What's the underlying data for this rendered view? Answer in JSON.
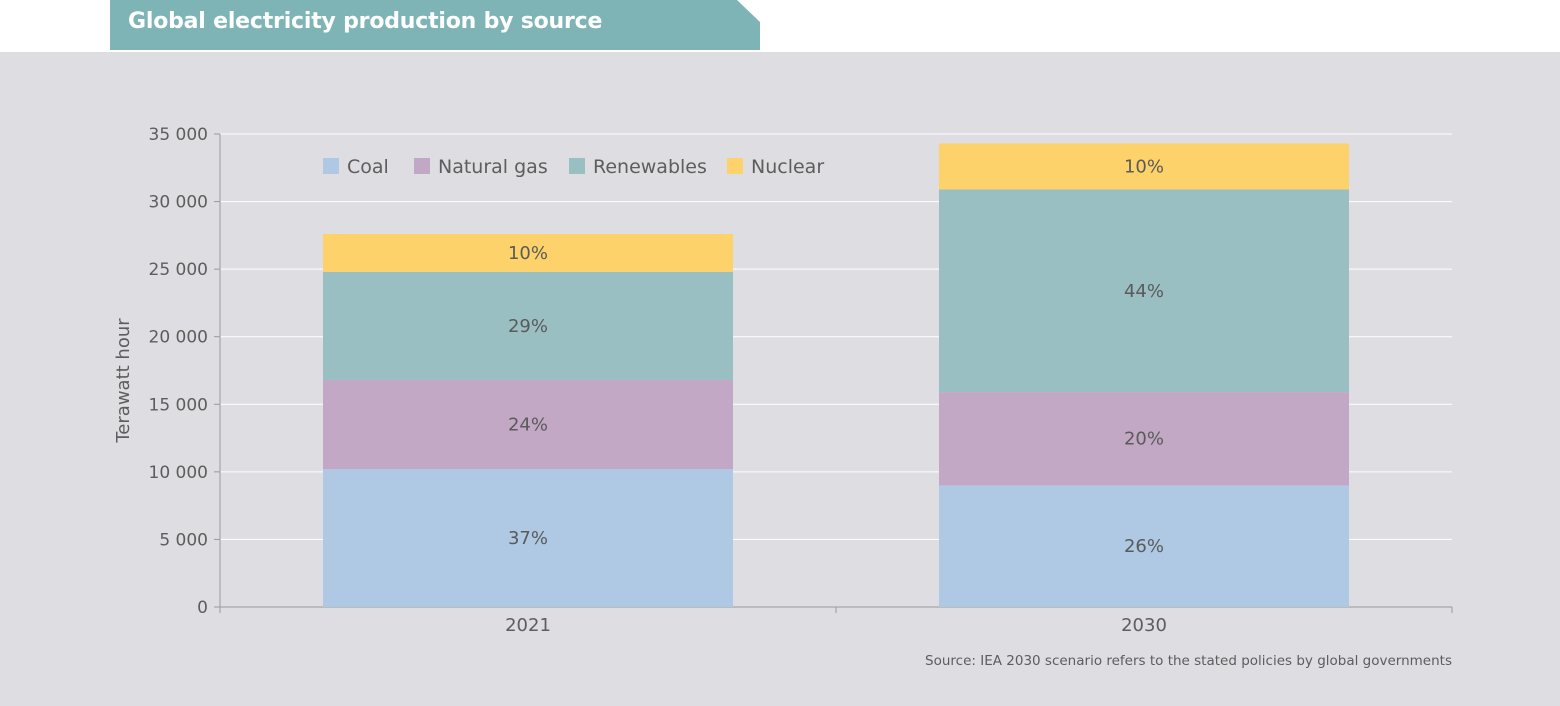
{
  "header": {
    "title": "Global electricity production by source"
  },
  "colors": {
    "title_band": "#7fb4b7",
    "panel": "#dedde1",
    "gridline": "#ffffff",
    "axis": "#9a9a9a",
    "text": "#5d5d5d"
  },
  "chart_data": {
    "type": "bar",
    "stacked": true,
    "title": "Global electricity production by source",
    "xlabel": "",
    "ylabel": "Terawatt hour",
    "ylim": [
      0,
      35000
    ],
    "yticks": [
      0,
      5000,
      10000,
      15000,
      20000,
      25000,
      30000,
      35000
    ],
    "ytick_labels": [
      "0",
      "5 000",
      "10 000",
      "15 000",
      "20 000",
      "25 000",
      "30 000",
      "35 000"
    ],
    "grid": true,
    "legend_position": "top-left",
    "categories": [
      "2021",
      "2030"
    ],
    "series": [
      {
        "name": "Coal",
        "color": "#afc8e3",
        "values": [
          10200,
          9000
        ],
        "labels": [
          "37%",
          "26%"
        ]
      },
      {
        "name": "Natural gas",
        "color": "#c2a8c5",
        "values": [
          6600,
          6900
        ],
        "labels": [
          "24%",
          "20%"
        ]
      },
      {
        "name": "Renewables",
        "color": "#9abfc2",
        "values": [
          8000,
          15000
        ],
        "labels": [
          "29%",
          "44%"
        ]
      },
      {
        "name": "Nuclear",
        "color": "#fdd26a",
        "values": [
          2800,
          3400
        ],
        "labels": [
          "10%",
          "10%"
        ]
      }
    ],
    "source_note": "Source: IEA 2030 scenario refers to the stated policies by global governments"
  }
}
